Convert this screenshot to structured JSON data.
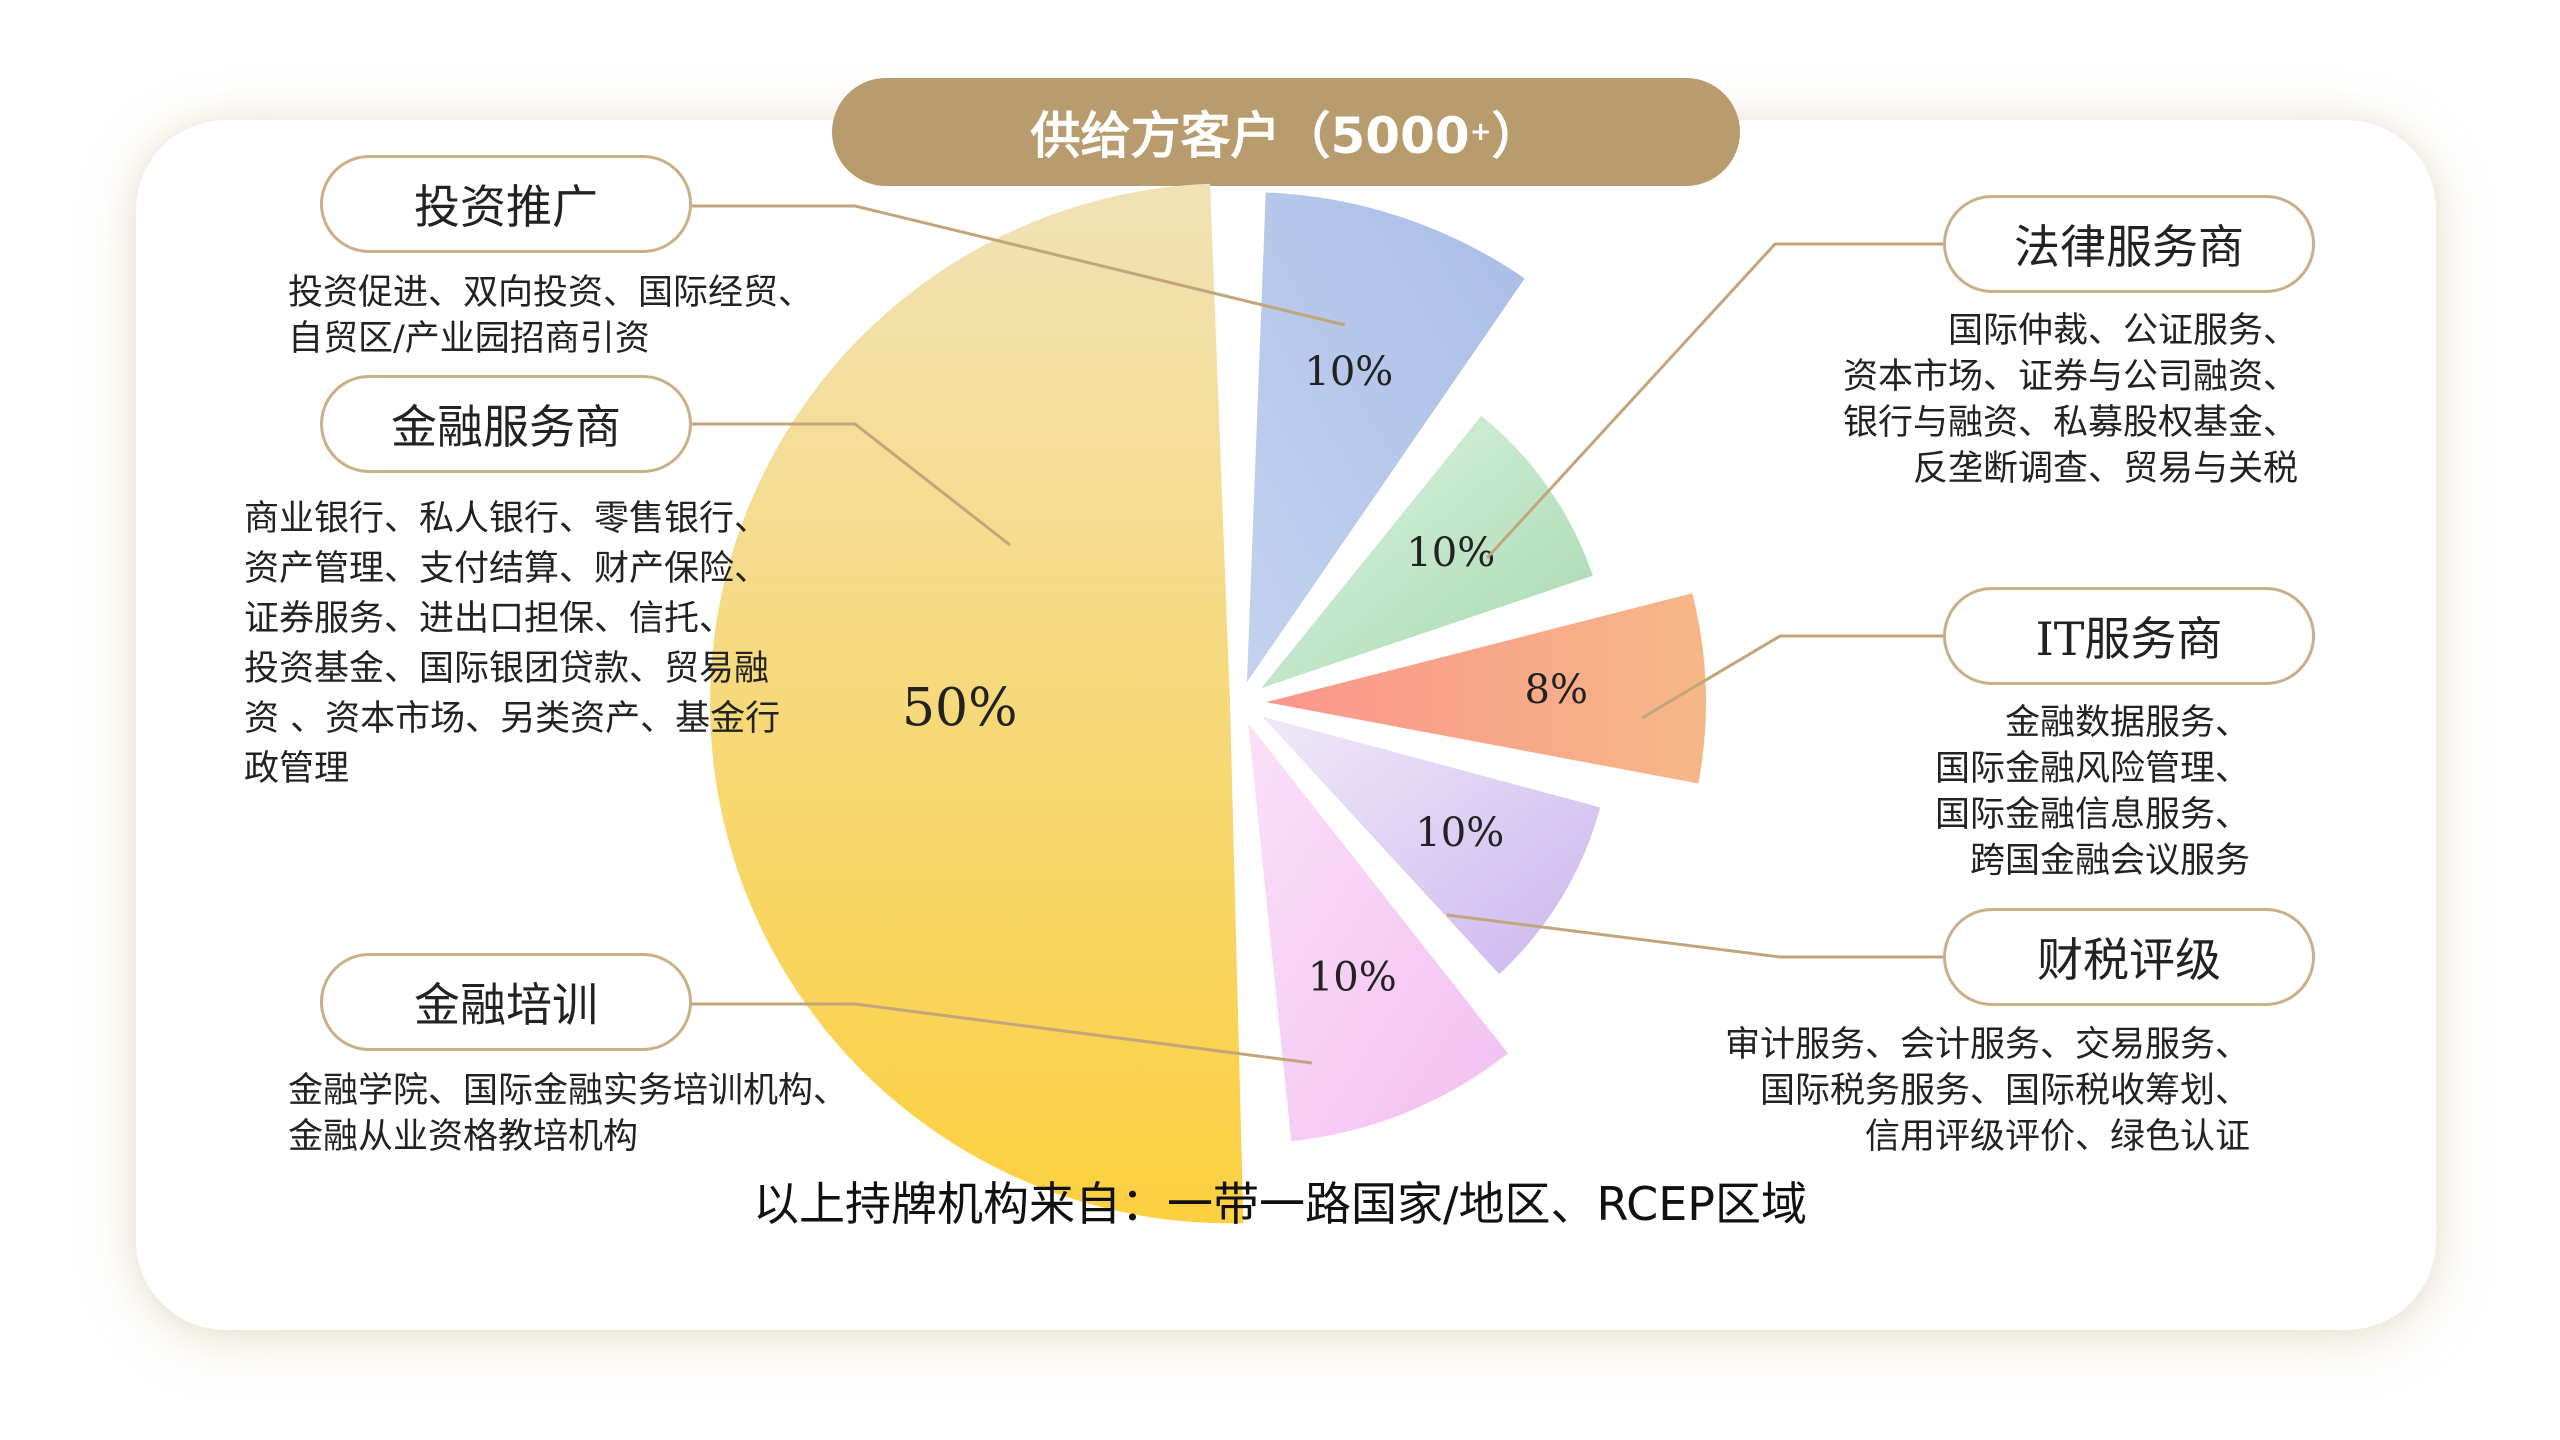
{
  "title": {
    "text": "供给方客户（5000",
    "sup": "+",
    "close": "）"
  },
  "chart_data": {
    "type": "pie",
    "slices": [
      {
        "name": "投资推广",
        "value": 10,
        "label": "10%",
        "color_a": "#c3d2ef",
        "color_b": "#a9bde6"
      },
      {
        "name": "法律服务商",
        "value": 10,
        "label": "10%",
        "color_a": "#d7f2dc",
        "color_b": "#a8d9b2"
      },
      {
        "name": "IT服务商",
        "value": 8,
        "label": "8%",
        "color_a": "#fb9a8c",
        "color_b": "#f7b487"
      },
      {
        "name": "财税评级",
        "value": 10,
        "label": "10%",
        "color_a": "#ece4f7",
        "color_b": "#cfbcf0"
      },
      {
        "name": "金融培训",
        "value": 10,
        "label": "10%",
        "color_a": "#f9d8f7",
        "color_b": "#f4c3f1"
      },
      {
        "name": "金融服务商",
        "value": 50,
        "label": "50%",
        "color_a": "#f2e2b2",
        "color_b": "#fbd34a"
      }
    ]
  },
  "categories": {
    "invest": {
      "title": "投资推广",
      "desc": "投资促进、双向投资、国际经贸、\n自贸区/产业园招商引资"
    },
    "finance": {
      "title": "金融服务商",
      "desc": "商业银行、私人银行、零售银行、\n资产管理、支付结算、财产保险、\n证券服务、进出口担保、信托、\n投资基金、国际银团贷款、贸易融\n资 、资本市场、另类资产、基金行\n政管理"
    },
    "training": {
      "title": "金融培训",
      "desc": "金融学院、国际金融实务培训机构、\n金融从业资格教培机构"
    },
    "legal": {
      "title": "法律服务商",
      "desc": "国际仲裁、公证服务、\n资本市场、证券与公司融资、\n银行与融资、私募股权基金、\n反垄断调查、贸易与关税"
    },
    "it": {
      "title": "IT服务商",
      "desc": "金融数据服务、\n国际金融风险管理、\n国际金融信息服务、\n跨国金融会议服务"
    },
    "tax": {
      "title": "财税评级",
      "desc": "审计服务、会计服务、交易服务、\n国际税务服务、国际税收筹划、\n信用评级评价、绿色认证"
    }
  },
  "footer": "以上持牌机构来自：一带一路国家/地区、RCEP区域"
}
